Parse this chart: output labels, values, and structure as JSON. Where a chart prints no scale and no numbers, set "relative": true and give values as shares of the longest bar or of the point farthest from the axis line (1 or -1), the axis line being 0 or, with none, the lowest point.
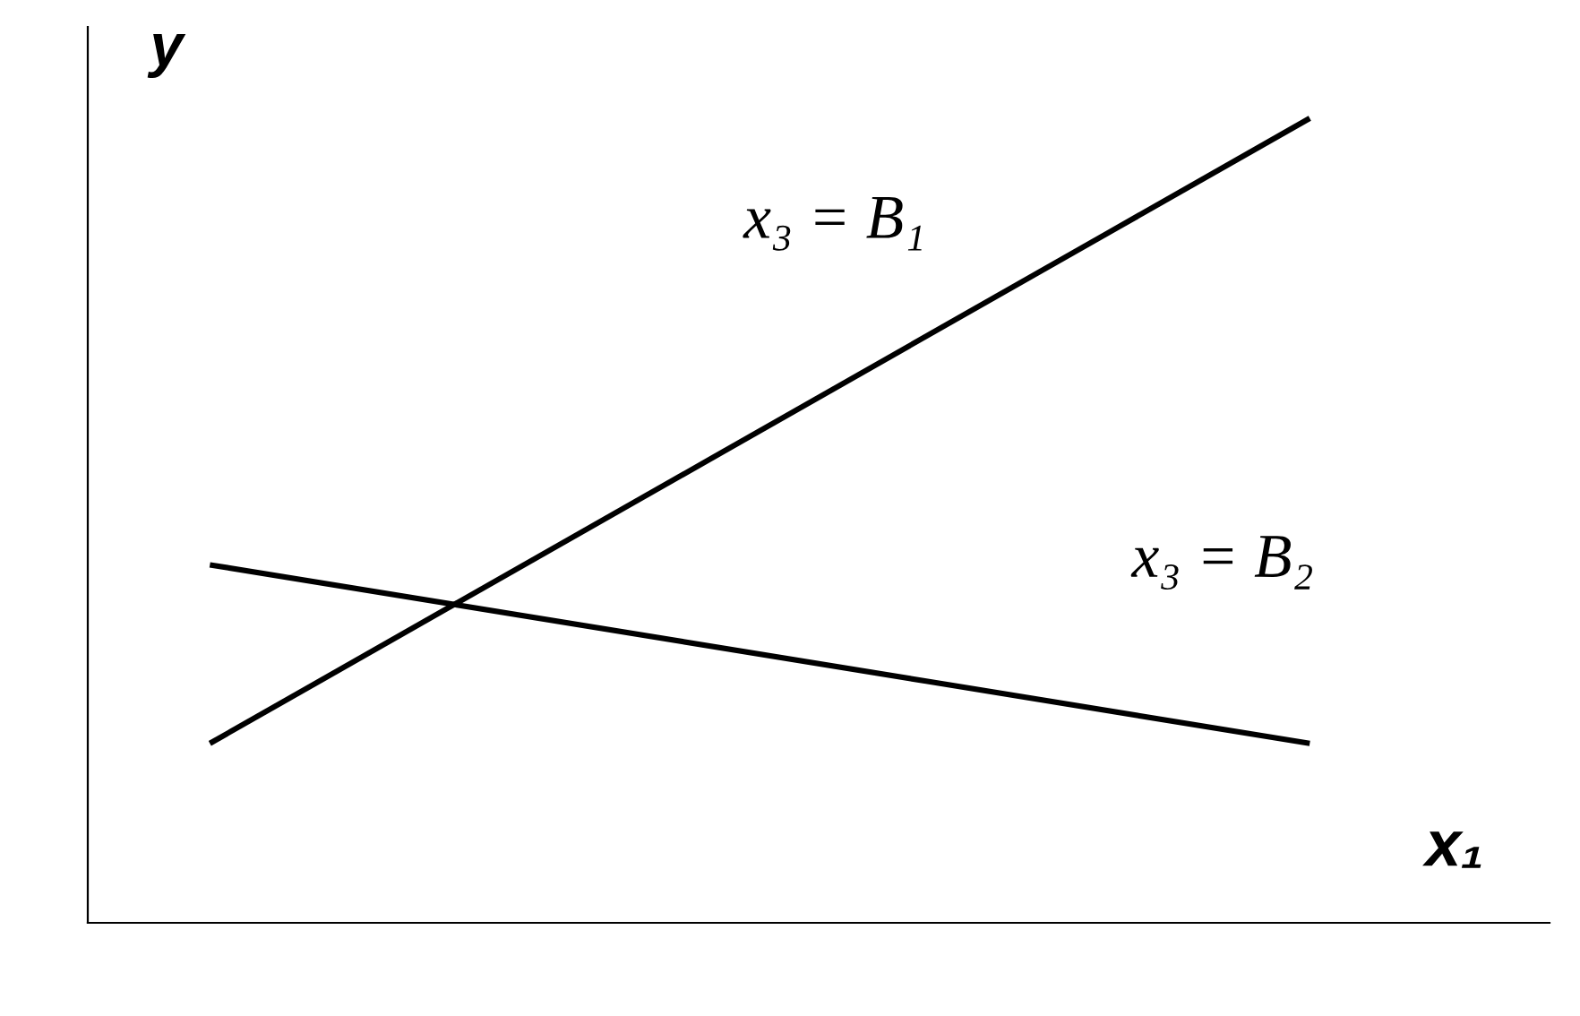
{
  "chart_data": {
    "type": "line",
    "relative": true,
    "xlabel": "x₁",
    "ylabel": "y",
    "categories": [
      null,
      null
    ],
    "series": [
      {
        "name": "x₃ = B₁",
        "color": "#000000",
        "values": [
          0.223,
          1.0
        ]
      },
      {
        "name": "x₃ = B₂",
        "color": "#000000",
        "values": [
          0.445,
          0.223
        ]
      }
    ],
    "legend": false,
    "grid": false,
    "marker": "none",
    "line_style": "solid"
  }
}
